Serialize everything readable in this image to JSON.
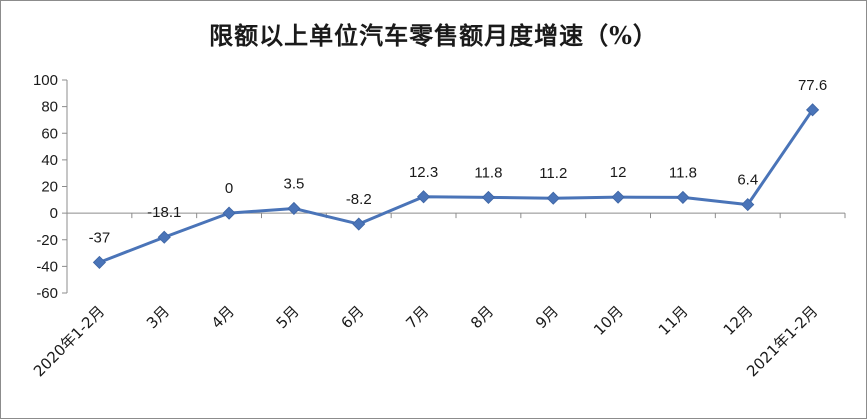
{
  "chart_data": {
    "type": "line",
    "title": "限额以上单位汽车零售额月度增速（%）",
    "xlabel": "",
    "ylabel": "",
    "categories": [
      "2020年1-2月",
      "3月",
      "4月",
      "5月",
      "6月",
      "7月",
      "8月",
      "9月",
      "10月",
      "11月",
      "12月",
      "2021年1-2月"
    ],
    "series": [
      {
        "values": [
          -37,
          -18.1,
          0,
          3.5,
          -8.2,
          12.3,
          11.8,
          11.2,
          12,
          11.8,
          6.4,
          77.6
        ],
        "labels": [
          "-37",
          "-18.1",
          "0",
          "3.5",
          "-8.2",
          "12.3",
          "11.8",
          "11.2",
          "12",
          "11.8",
          "6.4",
          "77.6"
        ]
      }
    ],
    "ylim": [
      -60,
      100
    ],
    "yticks": [
      100,
      80,
      60,
      40,
      20,
      0,
      -20,
      -40,
      -60
    ],
    "grid": false,
    "legend": "none",
    "colors": {
      "line": "#4a74b8",
      "marker": "#4a74b8",
      "axis": "#8c8c8c"
    }
  }
}
